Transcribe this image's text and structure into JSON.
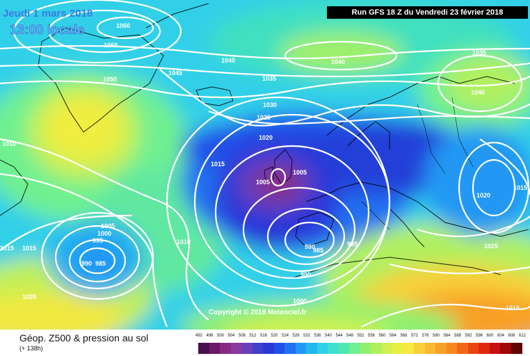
{
  "header": {
    "date": "Jeudi 1 mars 2018",
    "time": "13:00 locale",
    "run": "Run GFS 18 Z du Vendredi 23 février 2018"
  },
  "footer": {
    "title": "Géop. Z500 & pression au sol",
    "subtitle": "(+ 138h)",
    "copyright": "Copyright © 2018 Meteociel.fr"
  },
  "legend": {
    "ticks": [
      "492",
      "496",
      "500",
      "504",
      "508",
      "512",
      "516",
      "520",
      "524",
      "528",
      "532",
      "536",
      "540",
      "544",
      "548",
      "552",
      "556",
      "560",
      "564",
      "568",
      "572",
      "576",
      "580",
      "584",
      "588",
      "592",
      "596",
      "600",
      "604",
      "608",
      "612"
    ],
    "colors": [
      "#4a1050",
      "#6a1a66",
      "#882a82",
      "#8a3aa0",
      "#6a40b8",
      "#4040c8",
      "#2a38d8",
      "#2050e8",
      "#2070f0",
      "#2098f4",
      "#20b8f0",
      "#30d0e8",
      "#40e0d0",
      "#50e8b0",
      "#70f090",
      "#90f070",
      "#b0f060",
      "#d0f050",
      "#e8f040",
      "#f8e840",
      "#f8d038",
      "#f8b830",
      "#f8a028",
      "#f88820",
      "#f06818",
      "#e84810",
      "#e02810",
      "#c81010",
      "#a00808",
      "#600404"
    ]
  },
  "pressure_labels": [
    {
      "id": "p1060a",
      "text": "1060"
    },
    {
      "id": "p1060b",
      "text": "1060"
    },
    {
      "id": "p1050",
      "text": "1050"
    },
    {
      "id": "p1045",
      "text": "1045"
    },
    {
      "id": "p1040a",
      "text": "1040"
    },
    {
      "id": "p1040b",
      "text": "1040"
    },
    {
      "id": "p1040c",
      "text": "1040"
    },
    {
      "id": "p1035a",
      "text": "1035"
    },
    {
      "id": "p1035b",
      "text": "1035"
    },
    {
      "id": "p1030",
      "text": "1030"
    },
    {
      "id": "p1025a",
      "text": "1025"
    },
    {
      "id": "p1025b",
      "text": "1025"
    },
    {
      "id": "p1020a",
      "text": "1020"
    },
    {
      "id": "p1020b",
      "text": "1020"
    },
    {
      "id": "p1020c",
      "text": "1020"
    },
    {
      "id": "p1015a",
      "text": "1015"
    },
    {
      "id": "p1015b",
      "text": "1015"
    },
    {
      "id": "p1015c",
      "text": "1015"
    },
    {
      "id": "p1015d",
      "text": "1015"
    },
    {
      "id": "p1015e",
      "text": "1015"
    },
    {
      "id": "p1010a",
      "text": "1010"
    },
    {
      "id": "p1010b",
      "text": "1010"
    },
    {
      "id": "p1005a",
      "text": "1005"
    },
    {
      "id": "p1005b",
      "text": "1005"
    },
    {
      "id": "p1005c",
      "text": "1005"
    },
    {
      "id": "p1000a",
      "text": "1000"
    },
    {
      "id": "p1000b",
      "text": "1000"
    },
    {
      "id": "p995a",
      "text": "995"
    },
    {
      "id": "p995b",
      "text": "995"
    },
    {
      "id": "p990a",
      "text": "990"
    },
    {
      "id": "p990b",
      "text": "990"
    },
    {
      "id": "p985a",
      "text": "985"
    },
    {
      "id": "p985b",
      "text": "985"
    },
    {
      "id": "p980",
      "text": "980"
    }
  ]
}
